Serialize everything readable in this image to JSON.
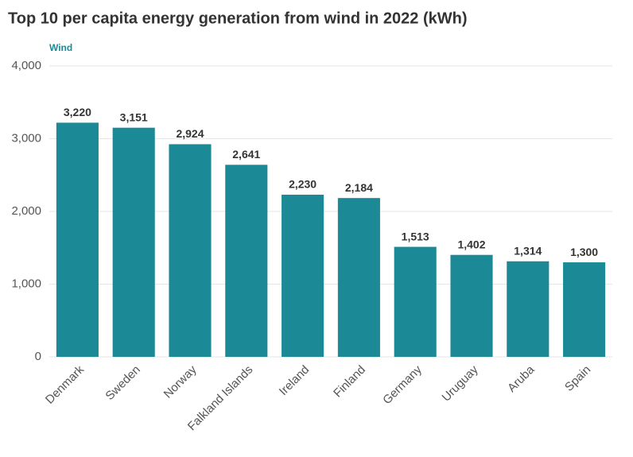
{
  "chart_data": {
    "type": "bar",
    "title": "Top 10 per capita energy generation from wind in 2022 (kWh)",
    "categories": [
      "Denmark",
      "Sweden",
      "Norway",
      "Falkland Islands",
      "Ireland",
      "Finland",
      "Germany",
      "Uruguay",
      "Aruba",
      "Spain"
    ],
    "series": [
      {
        "name": "Wind",
        "color": "#1b8a96",
        "values": [
          3220,
          3151,
          2924,
          2641,
          2230,
          2184,
          1513,
          1402,
          1314,
          1300
        ],
        "value_labels": [
          "3,220",
          "3,151",
          "2,924",
          "2,641",
          "2,230",
          "2,184",
          "1,513",
          "1,402",
          "1,314",
          "1,300"
        ]
      }
    ],
    "ylim": [
      0,
      4000
    ],
    "yticks": [
      0,
      {
        "value": 1000,
        "label": "1,000"
      },
      {
        "value": 2000,
        "label": "2,000"
      },
      {
        "value": 3000,
        "label": "3,000"
      },
      {
        "value": 4000,
        "label": "4,000"
      }
    ],
    "grid": true
  }
}
